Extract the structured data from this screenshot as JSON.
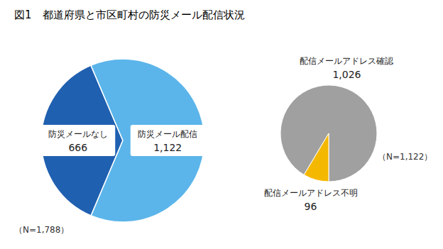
{
  "chart_data": [
    {
      "type": "pie",
      "title": "図1　都道府県と市区町村の防災メール配信状況",
      "categories": [
        "防災メールなし",
        "防災メール配信"
      ],
      "values": [
        666,
        1122
      ],
      "value_labels": [
        "666",
        "1,122"
      ],
      "colors": [
        "#2060B0",
        "#5BB5EA"
      ],
      "data_labels": true,
      "annotations": [
        "（N=1,788）"
      ]
    },
    {
      "type": "pie",
      "categories": [
        "配信メールアドレス確認",
        "配信メールアドレス不明"
      ],
      "values": [
        1026,
        96
      ],
      "value_labels": [
        "1,026",
        "96"
      ],
      "colors": [
        "#A0A0A0",
        "#F5B800"
      ],
      "data_labels": true,
      "annotations": [
        "（N=1,122）"
      ]
    }
  ]
}
